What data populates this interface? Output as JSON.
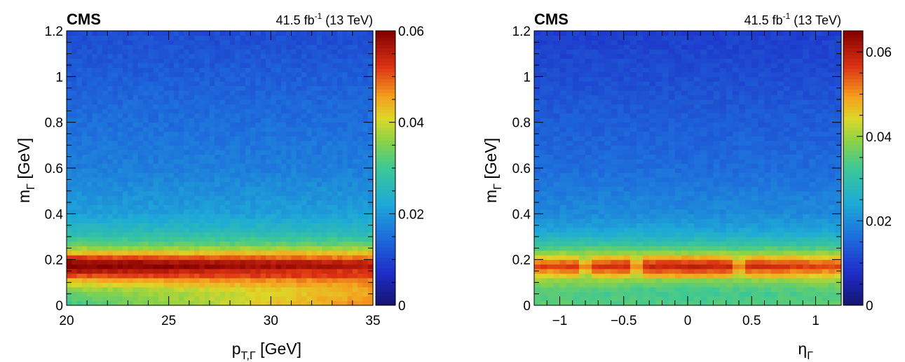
{
  "chart_data": [
    {
      "type": "heatmap",
      "experiment_label": "CMS",
      "lumi_label": "41.5 fb",
      "lumi_sup": "-1",
      "lumi_suffix": " (13 TeV)",
      "xlabel": "p",
      "xlabel_sub": "T,Γ",
      "xlabel_unit": " [GeV]",
      "ylabel": "m",
      "ylabel_sub": "Γ",
      "ylabel_unit": " [GeV]",
      "xlim": [
        20,
        35
      ],
      "ylim": [
        0,
        1.2
      ],
      "zlim": [
        0,
        0.06
      ],
      "x_ticks": [
        "20",
        "25",
        "30",
        "35"
      ],
      "y_ticks": [
        "0",
        "0.2",
        "0.4",
        "0.6",
        "0.8",
        "1",
        "1.2"
      ],
      "z_ticks": [
        "0",
        "0.02",
        "0.04",
        "0.06"
      ],
      "z_tick_values": [
        0,
        0.02,
        0.04,
        0.06
      ],
      "bins": {
        "nx": 60,
        "ny": 60
      },
      "density_profile_m": [
        {
          "m": 0.0,
          "z": 0.03
        },
        {
          "m": 0.06,
          "z": 0.034
        },
        {
          "m": 0.11,
          "z": 0.044
        },
        {
          "m": 0.14,
          "z": 0.054
        },
        {
          "m": 0.17,
          "z": 0.06
        },
        {
          "m": 0.2,
          "z": 0.057
        },
        {
          "m": 0.22,
          "z": 0.046
        },
        {
          "m": 0.26,
          "z": 0.034
        },
        {
          "m": 0.32,
          "z": 0.026
        },
        {
          "m": 0.4,
          "z": 0.021
        },
        {
          "m": 0.6,
          "z": 0.017
        },
        {
          "m": 0.8,
          "z": 0.015
        },
        {
          "m": 1.0,
          "z": 0.013
        },
        {
          "m": 1.2,
          "z": 0.011
        }
      ],
      "x_trend": "low-mass region rises from ~0.034 at pT=20 to ~0.052 at pT=35"
    },
    {
      "type": "heatmap",
      "experiment_label": "CMS",
      "lumi_label": "41.5 fb",
      "lumi_sup": "-1",
      "lumi_suffix": " (13 TeV)",
      "xlabel": "η",
      "xlabel_sub": "Γ",
      "xlabel_unit": "",
      "ylabel": "m",
      "ylabel_sub": "Γ",
      "ylabel_unit": " [GeV]",
      "xlim": [
        -1.2,
        1.2
      ],
      "ylim": [
        0,
        1.2
      ],
      "zlim": [
        0,
        0.065
      ],
      "x_ticks": [
        "−1",
        "−0.5",
        "0",
        "0.5",
        "1"
      ],
      "x_tick_values": [
        -1,
        -0.5,
        0,
        0.5,
        1
      ],
      "y_ticks": [
        "0",
        "0.2",
        "0.4",
        "0.6",
        "0.8",
        "1",
        "1.2"
      ],
      "z_ticks": [
        "0",
        "0.02",
        "0.04",
        "0.06"
      ],
      "z_tick_values": [
        0,
        0.02,
        0.04,
        0.06
      ],
      "bins": {
        "nx": 48,
        "ny": 60
      },
      "density_profile_m": [
        {
          "m": 0.0,
          "z": 0.036
        },
        {
          "m": 0.06,
          "z": 0.034
        },
        {
          "m": 0.11,
          "z": 0.04
        },
        {
          "m": 0.14,
          "z": 0.05
        },
        {
          "m": 0.17,
          "z": 0.057
        },
        {
          "m": 0.2,
          "z": 0.052
        },
        {
          "m": 0.22,
          "z": 0.042
        },
        {
          "m": 0.26,
          "z": 0.032
        },
        {
          "m": 0.32,
          "z": 0.024
        },
        {
          "m": 0.4,
          "z": 0.02
        },
        {
          "m": 0.6,
          "z": 0.016
        },
        {
          "m": 0.8,
          "z": 0.014
        },
        {
          "m": 1.0,
          "z": 0.012
        },
        {
          "m": 1.2,
          "z": 0.01
        }
      ],
      "x_trend": "peak band strongest near eta=0, weaker toward |eta|=1.2"
    }
  ]
}
